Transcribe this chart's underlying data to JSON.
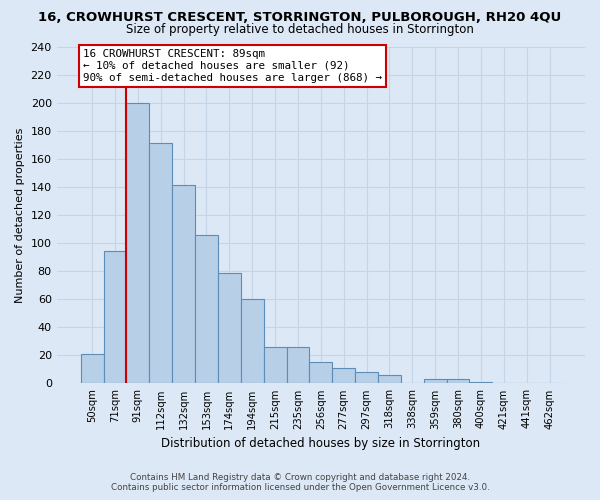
{
  "title": "16, CROWHURST CRESCENT, STORRINGTON, PULBOROUGH, RH20 4QU",
  "subtitle": "Size of property relative to detached houses in Storrington",
  "xlabel": "Distribution of detached houses by size in Storrington",
  "ylabel": "Number of detached properties",
  "bar_labels": [
    "50sqm",
    "71sqm",
    "91sqm",
    "112sqm",
    "132sqm",
    "153sqm",
    "174sqm",
    "194sqm",
    "215sqm",
    "235sqm",
    "256sqm",
    "277sqm",
    "297sqm",
    "318sqm",
    "338sqm",
    "359sqm",
    "380sqm",
    "400sqm",
    "421sqm",
    "441sqm",
    "462sqm"
  ],
  "bar_values": [
    21,
    94,
    200,
    171,
    141,
    106,
    79,
    60,
    26,
    26,
    15,
    11,
    8,
    6,
    0,
    3,
    3,
    1,
    0,
    0,
    0
  ],
  "bar_color": "#b8cfe8",
  "bar_edge_color": "#5b8db8",
  "vline_color": "#cc0000",
  "ylim": [
    0,
    240
  ],
  "yticks": [
    0,
    20,
    40,
    60,
    80,
    100,
    120,
    140,
    160,
    180,
    200,
    220,
    240
  ],
  "annotation_title": "16 CROWHURST CRESCENT: 89sqm",
  "annotation_line1": "← 10% of detached houses are smaller (92)",
  "annotation_line2": "90% of semi-detached houses are larger (868) →",
  "annotation_box_color": "#ffffff",
  "annotation_box_edge": "#cc0000",
  "footer1": "Contains HM Land Registry data © Crown copyright and database right 2024.",
  "footer2": "Contains public sector information licensed under the Open Government Licence v3.0.",
  "bg_color": "#dce8f5",
  "plot_bg_color": "#dce8f5",
  "grid_color": "#c5d5e8"
}
